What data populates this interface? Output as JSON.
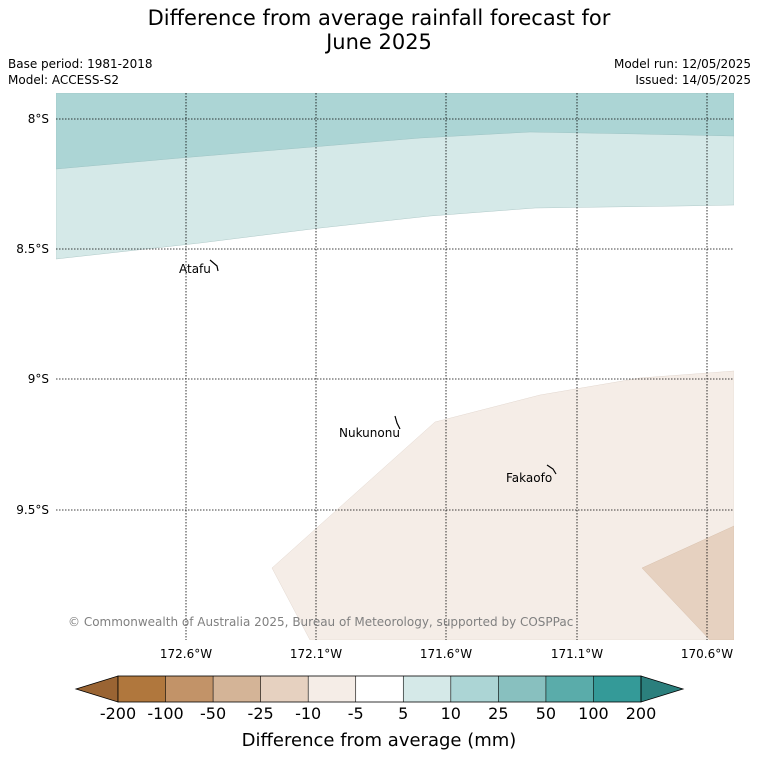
{
  "title": {
    "line1": "Difference from average rainfall forecast for",
    "line2": "June 2025"
  },
  "meta": {
    "base_period": "Base period: 1981-2018",
    "model": "Model: ACCESS-S2",
    "model_run": "Model run: 12/05/2025",
    "issued": "Issued: 14/05/2025"
  },
  "map": {
    "lat_labels": [
      "8°S",
      "8.5°S",
      "9°S",
      "9.5°S"
    ],
    "lon_labels": [
      "172.6°W",
      "172.1°W",
      "171.6°W",
      "171.1°W",
      "170.6°W"
    ],
    "places": [
      {
        "name": "Atafu"
      },
      {
        "name": "Nukunonu"
      },
      {
        "name": "Fakaofo"
      }
    ],
    "copyright": "© Commonwealth of Australia 2025, Bureau of Meteorology, supported by COSPPac"
  },
  "colorbar": {
    "title": "Difference from average (mm)",
    "ticks": [
      "-200",
      "-100",
      "-50",
      "-25",
      "-10",
      "-5",
      "5",
      "10",
      "25",
      "50",
      "100",
      "200"
    ],
    "colors": {
      "below_min": "#9a6433",
      "bins": [
        "#b0773d",
        "#c29368",
        "#d4b497",
        "#e6d1c0",
        "#f5ede7",
        "#ffffff",
        "#d5e9e8",
        "#acd5d5",
        "#88c0bf",
        "#5aacaa",
        "#349a98"
      ],
      "above_max": "#2b7f7d"
    }
  }
}
